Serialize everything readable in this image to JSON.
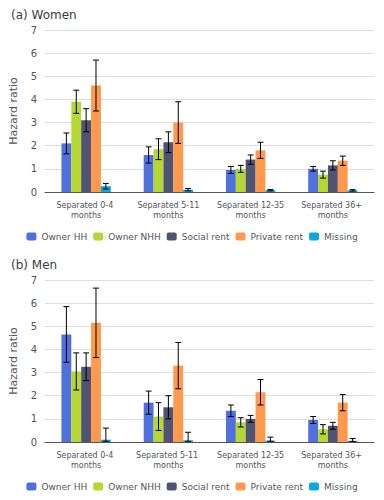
{
  "chart_data": [
    {
      "type": "bar",
      "title": "(a) Women",
      "ylabel": "Hazard ratio",
      "categories": [
        "Separated 0-4 months",
        "Separated 5-11\nmonths",
        "Separated 12-35\nmonths",
        "Separated 36+ months"
      ],
      "series": [
        {
          "name": "Owner HH",
          "values": [
            2.1,
            1.6,
            0.95,
            1.0
          ],
          "yerr_lo": [
            0.45,
            0.35,
            0.15,
            0.1
          ],
          "yerr_hi": [
            0.45,
            0.35,
            0.15,
            0.1
          ]
        },
        {
          "name": "Owner NHH",
          "values": [
            3.9,
            1.85,
            1.0,
            0.75
          ],
          "yerr_lo": [
            0.5,
            0.45,
            0.15,
            0.15
          ],
          "yerr_hi": [
            0.5,
            0.45,
            0.15,
            0.15
          ]
        },
        {
          "name": "Social rent",
          "values": [
            3.1,
            2.15,
            1.4,
            1.15
          ],
          "yerr_lo": [
            0.5,
            0.45,
            0.2,
            0.2
          ],
          "yerr_hi": [
            0.5,
            0.45,
            0.2,
            0.2
          ]
        },
        {
          "name": "Private rent",
          "values": [
            4.6,
            3.0,
            1.8,
            1.35
          ],
          "yerr_lo": [
            1.1,
            0.9,
            0.35,
            0.2
          ],
          "yerr_hi": [
            1.1,
            0.9,
            0.35,
            0.2
          ]
        },
        {
          "name": "Missing",
          "values": [
            0.25,
            0.1,
            0.08,
            0.07
          ],
          "yerr_lo": [
            0.12,
            0.05,
            0.03,
            0.03
          ],
          "yerr_hi": [
            0.12,
            0.05,
            0.03,
            0.03
          ]
        }
      ],
      "ylim": [
        0,
        7
      ],
      "yticks": [
        0,
        1,
        2,
        3,
        4,
        5,
        6,
        7
      ],
      "grid": true,
      "legend": "bottom"
    },
    {
      "type": "bar",
      "title": "(b) Men",
      "ylabel": "Hazard ratio",
      "categories": [
        "Separated 0-4 months",
        "Separated 5-11 months",
        "Separated 12-35\nmonths",
        "Separated 36+ months"
      ],
      "series": [
        {
          "name": "Owner HH",
          "values": [
            4.65,
            1.7,
            1.35,
            0.95
          ],
          "yerr_lo": [
            1.2,
            0.5,
            0.25,
            0.15
          ],
          "yerr_hi": [
            1.2,
            0.5,
            0.25,
            0.15
          ]
        },
        {
          "name": "Owner NHH",
          "values": [
            3.05,
            1.1,
            0.85,
            0.55
          ],
          "yerr_lo": [
            0.8,
            0.6,
            0.2,
            0.2
          ],
          "yerr_hi": [
            0.8,
            0.6,
            0.2,
            0.2
          ]
        },
        {
          "name": "Social rent",
          "values": [
            3.25,
            1.5,
            1.0,
            0.7
          ],
          "yerr_lo": [
            0.6,
            0.5,
            0.15,
            0.15
          ],
          "yerr_hi": [
            0.6,
            0.5,
            0.15,
            0.15
          ]
        },
        {
          "name": "Private rent",
          "values": [
            5.15,
            3.3,
            2.15,
            1.7
          ],
          "yerr_lo": [
            1.5,
            1.0,
            0.55,
            0.35
          ],
          "yerr_hi": [
            1.5,
            1.0,
            0.55,
            0.35
          ]
        },
        {
          "name": "Missing",
          "values": [
            0.1,
            0.07,
            0.06,
            0.05
          ],
          "yerr_lo": [
            0.07,
            0.04,
            0.03,
            0.03
          ],
          "yerr_hi": [
            0.5,
            0.35,
            0.15,
            0.1
          ]
        }
      ],
      "ylim": [
        0,
        7
      ],
      "yticks": [
        0,
        1,
        2,
        3,
        4,
        5,
        6,
        7
      ],
      "grid": true,
      "legend": "bottom"
    }
  ]
}
